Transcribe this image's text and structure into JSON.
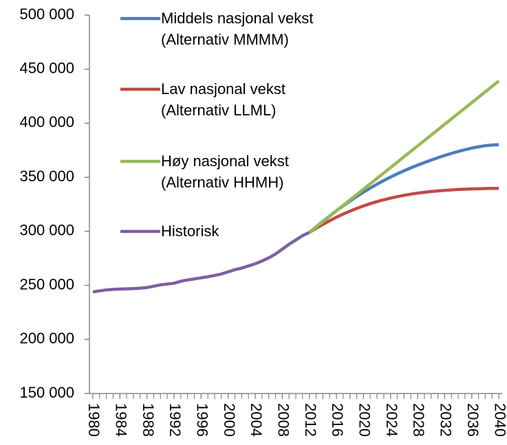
{
  "chart_data": {
    "type": "line",
    "x": [
      1980,
      1981,
      1982,
      1983,
      1984,
      1985,
      1986,
      1987,
      1988,
      1989,
      1990,
      1991,
      1992,
      1993,
      1994,
      1995,
      1996,
      1997,
      1998,
      1999,
      2000,
      2001,
      2002,
      2003,
      2004,
      2005,
      2006,
      2007,
      2008,
      2009,
      2010,
      2011,
      2012,
      2013,
      2014,
      2015,
      2016,
      2017,
      2018,
      2019,
      2020,
      2021,
      2022,
      2023,
      2024,
      2025,
      2026,
      2027,
      2028,
      2029,
      2030,
      2031,
      2032,
      2033,
      2034,
      2035,
      2036,
      2037,
      2038,
      2039,
      2040
    ],
    "series": [
      {
        "name": "Middels nasjonal vekst (Alternativ MMMM)",
        "color": "#4a7ebb",
        "values": [
          null,
          null,
          null,
          null,
          null,
          null,
          null,
          null,
          null,
          null,
          null,
          null,
          null,
          null,
          null,
          null,
          null,
          null,
          null,
          null,
          null,
          null,
          null,
          null,
          null,
          null,
          null,
          null,
          null,
          null,
          null,
          null,
          299000,
          304200,
          309300,
          314200,
          319000,
          323600,
          328000,
          332200,
          336200,
          340000,
          343600,
          347000,
          350200,
          353200,
          356000,
          358700,
          361200,
          363600,
          365900,
          368100,
          370200,
          372100,
          373900,
          375500,
          377000,
          378200,
          379200,
          379800,
          380200
        ]
      },
      {
        "name": "Lav nasjonal vekst (Alternativ LLML)",
        "color": "#be4b48",
        "values": [
          null,
          null,
          null,
          null,
          null,
          null,
          null,
          null,
          null,
          null,
          null,
          null,
          null,
          null,
          null,
          null,
          null,
          null,
          null,
          null,
          null,
          null,
          null,
          null,
          null,
          null,
          null,
          null,
          null,
          null,
          null,
          null,
          299000,
          302800,
          306400,
          309800,
          313000,
          316000,
          318700,
          321200,
          323500,
          325600,
          327500,
          329200,
          330700,
          332100,
          333300,
          334400,
          335300,
          336100,
          336800,
          337400,
          337900,
          338300,
          338700,
          339000,
          339200,
          339400,
          339600,
          339700,
          339800
        ]
      },
      {
        "name": "Høy nasjonal vekst (Alternativ HHMH)",
        "color": "#98b954",
        "values": [
          null,
          null,
          null,
          null,
          null,
          null,
          null,
          null,
          null,
          null,
          null,
          null,
          null,
          null,
          null,
          null,
          null,
          null,
          null,
          null,
          null,
          null,
          null,
          null,
          null,
          null,
          null,
          null,
          null,
          null,
          null,
          null,
          299000,
          304000,
          309000,
          314000,
          319000,
          324000,
          329000,
          334000,
          339000,
          344000,
          349000,
          354000,
          359000,
          364000,
          369000,
          374000,
          379000,
          384000,
          389000,
          394000,
          399000,
          404000,
          409000,
          414000,
          419000,
          424000,
          429000,
          434000,
          439000
        ]
      },
      {
        "name": "Historisk",
        "color": "#7d60a0",
        "values": [
          243900,
          245000,
          245800,
          246300,
          246600,
          246800,
          247000,
          247400,
          248000,
          249200,
          250500,
          251200,
          252000,
          253800,
          255000,
          256000,
          257000,
          258000,
          259200,
          260500,
          262500,
          264500,
          266000,
          268000,
          270000,
          272500,
          275500,
          279000,
          283500,
          288000,
          292000,
          296000,
          299000,
          null,
          null,
          null,
          null,
          null,
          null,
          null,
          null,
          null,
          null,
          null,
          null,
          null,
          null,
          null,
          null,
          null,
          null,
          null,
          null,
          null,
          null,
          null,
          null,
          null,
          null,
          null,
          null
        ]
      }
    ],
    "xlim": [
      1979.5,
      2040.5
    ],
    "xticks": [
      1980,
      1984,
      1988,
      1992,
      1996,
      2000,
      2004,
      2008,
      2012,
      2016,
      2020,
      2024,
      2028,
      2032,
      2036,
      2040
    ],
    "ylim": [
      150000,
      500000
    ],
    "yticks": [
      {
        "value": 150000,
        "label": "150 000"
      },
      {
        "value": 200000,
        "label": "200 000"
      },
      {
        "value": 250000,
        "label": "250 000"
      },
      {
        "value": 300000,
        "label": "300 000"
      },
      {
        "value": 350000,
        "label": "350 000"
      },
      {
        "value": 400000,
        "label": "400 000"
      },
      {
        "value": 450000,
        "label": "450 000"
      },
      {
        "value": 500000,
        "label": "500 000"
      }
    ],
    "grid": false
  }
}
